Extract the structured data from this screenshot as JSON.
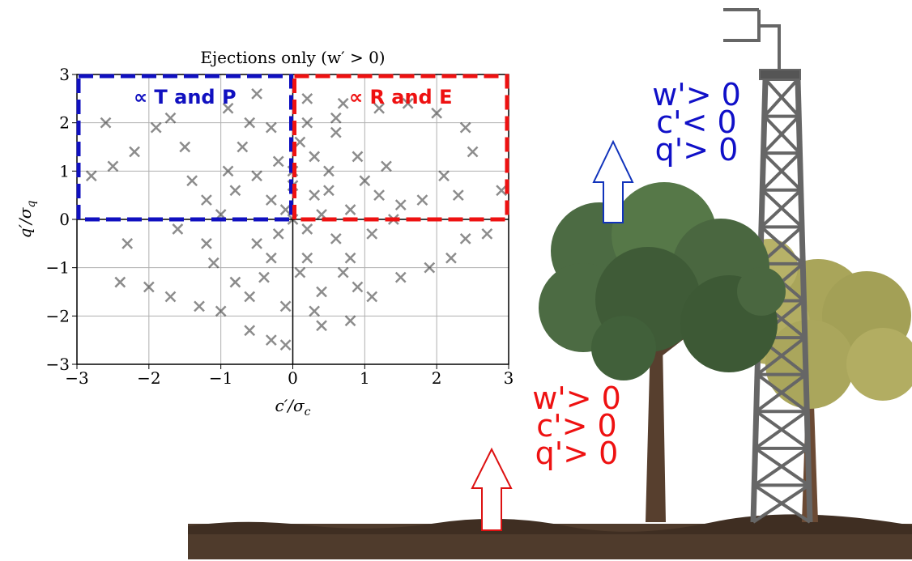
{
  "chart_data": {
    "type": "scatter",
    "title": "Ejections only (w′ > 0)",
    "xlabel": {
      "main": "c′/σ",
      "sub": "c"
    },
    "ylabel": {
      "main": "q′/σ",
      "sub": "q"
    },
    "xlim": [
      -3,
      3
    ],
    "ylim": [
      -3,
      3
    ],
    "xticks": [
      {
        "value": -3,
        "label": "−3"
      },
      {
        "value": -2,
        "label": "−2"
      },
      {
        "value": -1,
        "label": "−1"
      },
      0,
      1,
      2,
      3
    ],
    "yticks": [
      {
        "value": -3,
        "label": "−3"
      },
      {
        "value": -2,
        "label": "−2"
      },
      {
        "value": -1,
        "label": "−1"
      },
      0,
      1,
      2,
      3
    ],
    "grid": true,
    "color": "#000000",
    "annotations": [
      {
        "text": "∝ T and P",
        "color": "#1010c0"
      },
      {
        "text": "∝ R and E",
        "color": "#ee1111"
      }
    ],
    "x": [
      -2.6,
      -2.5,
      -2.8,
      -2.2,
      -1.9,
      -1.7,
      -1.5,
      -2.3,
      -2.4,
      -2.0,
      -1.7,
      -1.3,
      -1.0,
      -0.6,
      -0.3,
      -0.1,
      0.4,
      0.8,
      1.1,
      1.5,
      1.9,
      2.2,
      2.4,
      2.3,
      2.1,
      2.5,
      2.4,
      2.0,
      1.6,
      1.2,
      2.9,
      2.7,
      1.8,
      1.5,
      -1.2,
      -1.6,
      -0.9,
      -0.5,
      0.2,
      0.7,
      0,
      0.3,
      -0.3,
      0.5,
      -0.5,
      0.2,
      -0.2,
      0.8,
      -0.8,
      0.1,
      -0.4,
      0.6,
      0.9,
      -0.7,
      0.4,
      -0.1,
      1.0,
      -1.0,
      0.2,
      -0.3,
      0.6,
      1.2,
      -1.1,
      0.7,
      -0.6,
      0.0,
      0.4,
      -0.2,
      0.3,
      -0.5,
      0.8,
      1.1,
      -0.9,
      0.1,
      -0.3,
      0.5,
      -0.1,
      0.2,
      1.3,
      -1.2,
      0.0,
      0.6,
      -0.6,
      0.9,
      -0.8,
      0.3,
      1.4,
      -1.4
    ],
    "y": [
      2.0,
      1.1,
      0.9,
      1.4,
      1.9,
      2.1,
      1.5,
      -0.5,
      -1.3,
      -1.4,
      -1.6,
      -1.8,
      -1.9,
      -2.3,
      -2.5,
      -2.6,
      -2.2,
      -2.1,
      -1.6,
      -1.2,
      -1.0,
      -0.8,
      -0.4,
      0.5,
      0.9,
      1.4,
      1.9,
      2.2,
      2.4,
      2.3,
      0.6,
      -0.3,
      0.4,
      0.3,
      -0.5,
      -0.2,
      2.3,
      2.6,
      2.5,
      2.4,
      0,
      0.5,
      0.4,
      1.0,
      -0.5,
      -0.8,
      1.2,
      0.2,
      0.6,
      1.6,
      -1.2,
      -0.4,
      1.3,
      1.5,
      -1.5,
      -1.8,
      0.8,
      0.1,
      2.0,
      1.9,
      1.8,
      0.5,
      -0.9,
      -1.1,
      -1.6,
      0.7,
      0.1,
      -0.3,
      1.3,
      0.9,
      -0.8,
      -0.3,
      1.0,
      -1.1,
      -0.8,
      0.6,
      0.2,
      -0.2,
      1.1,
      0.4,
      1.0,
      2.1,
      2.0,
      -1.4,
      -1.3,
      -1.9,
      0.0,
      0.8
    ]
  },
  "scene": {
    "upper_labels": {
      "color": "#1010c8",
      "lines": [
        "w'> 0",
        "c'< 0",
        "q'> 0"
      ]
    },
    "lower_labels": {
      "color": "#ee1111",
      "lines": [
        "w'> 0",
        "c'> 0",
        "q'> 0"
      ]
    }
  }
}
